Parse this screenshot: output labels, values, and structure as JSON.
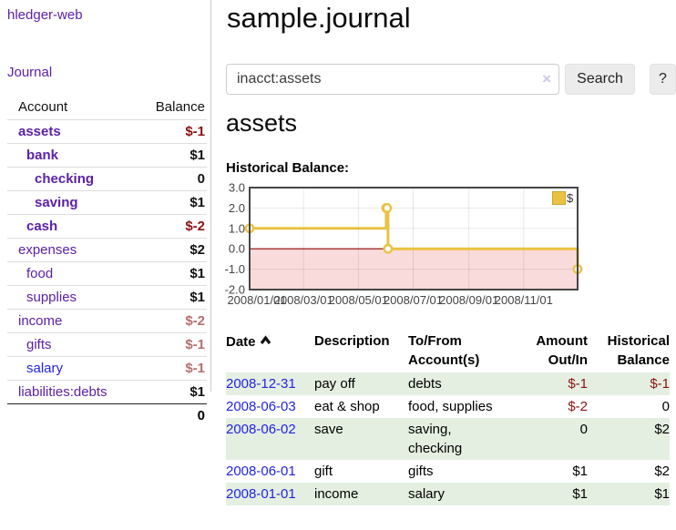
{
  "sidebar": {
    "app_title": "hledger-web",
    "nav": {
      "journal": "Journal"
    },
    "accounts_table": {
      "headers": {
        "account": "Account",
        "balance": "Balance"
      },
      "rows": [
        {
          "name": "assets",
          "depth": 0,
          "in_account_tree": true,
          "balance": "$-1"
        },
        {
          "name": "bank",
          "depth": 1,
          "in_account_tree": true,
          "balance": "$1"
        },
        {
          "name": "checking",
          "depth": 2,
          "in_account_tree": true,
          "balance": "0"
        },
        {
          "name": "saving",
          "depth": 2,
          "in_account_tree": true,
          "balance": "$1"
        },
        {
          "name": "cash",
          "depth": 1,
          "in_account_tree": true,
          "balance": "$-2"
        },
        {
          "name": "expenses",
          "depth": 0,
          "in_account_tree": false,
          "balance": "$2"
        },
        {
          "name": "food",
          "depth": 1,
          "in_account_tree": false,
          "balance": "$1"
        },
        {
          "name": "supplies",
          "depth": 1,
          "in_account_tree": false,
          "balance": "$1"
        },
        {
          "name": "income",
          "depth": 0,
          "in_account_tree": false,
          "balance": "$-2"
        },
        {
          "name": "gifts",
          "depth": 1,
          "in_account_tree": false,
          "balance": "$-1"
        },
        {
          "name": "salary",
          "depth": 1,
          "in_account_tree": false,
          "balance": "$-1",
          "visited": false
        },
        {
          "name": "liabilities:debts",
          "depth": 0,
          "in_account_tree": false,
          "balance": "$1"
        }
      ],
      "total": "0"
    }
  },
  "main": {
    "title": "sample.journal",
    "search": {
      "value": "inacct:assets",
      "placeholder": "",
      "clear_icon": "×",
      "button_label": "Search",
      "help_label": "?"
    },
    "account_heading": "assets",
    "chart_title": "Historical Balance:"
  },
  "chart_data": {
    "type": "line",
    "style": "step",
    "title": "Historical Balance",
    "series": [
      {
        "name": "$",
        "color": "#eac243",
        "points": [
          [
            "2008-01-01",
            1
          ],
          [
            "2008-06-01",
            2
          ],
          [
            "2008-06-02",
            2
          ],
          [
            "2008-06-03",
            0
          ],
          [
            "2008-12-31",
            -1
          ]
        ]
      }
    ],
    "x_range": [
      "2008-01-01",
      "2008-12-31"
    ],
    "ylim": [
      -2,
      3
    ],
    "y_ticks": [
      "3.0",
      "2.0",
      "1.0",
      "0.0",
      "-1.0",
      "-2.0"
    ],
    "x_ticks": [
      {
        "label": "2008/01/01",
        "date": "2008-01-01"
      },
      {
        "label": "2008/03/01",
        "date": "2008-03-01"
      },
      {
        "label": "2008/05/01",
        "date": "2008-05-01"
      },
      {
        "label": "2008/07/01",
        "date": "2008-07-01"
      },
      {
        "label": "2008/09/01",
        "date": "2008-09-01"
      },
      {
        "label": "2008/11/01",
        "date": "2008-11-01"
      }
    ],
    "grid": true,
    "legend_position": "top-right",
    "negative_region_color": "#f9dbdb",
    "zero_line_color": "#8b0000",
    "border_color": "#464646",
    "axis_label_color": "#444444"
  },
  "register": {
    "headers": {
      "date": "Date",
      "description": "Description",
      "accounts": "To/From Account(s)",
      "amount": "Amount Out/In",
      "balance": "Historical Balance"
    },
    "sort": {
      "column": "date",
      "direction": "ascending"
    },
    "rows": [
      {
        "date": "2008-12-31",
        "description": "pay off",
        "accounts": "debts",
        "amount": "$-1",
        "balance": "$-1"
      },
      {
        "date": "2008-06-03",
        "description": "eat & shop",
        "accounts": "food, supplies",
        "amount": "$-2",
        "balance": "0"
      },
      {
        "date": "2008-06-02",
        "description": "save",
        "accounts": "saving,\nchecking",
        "amount": "0",
        "balance": "$2"
      },
      {
        "date": "2008-06-01",
        "description": "gift",
        "accounts": "gifts",
        "amount": "$1",
        "balance": "$2"
      },
      {
        "date": "2008-01-01",
        "description": "income",
        "accounts": "salary",
        "amount": "$1",
        "balance": "$1"
      }
    ]
  },
  "colors": {
    "link_purple": "#5b21a8",
    "link_blue": "#2323e6",
    "negative_strong": "#8b1212",
    "negative_soft": "#b86e6e",
    "row_green": "#e4efe1",
    "series_gold": "#eac243"
  }
}
